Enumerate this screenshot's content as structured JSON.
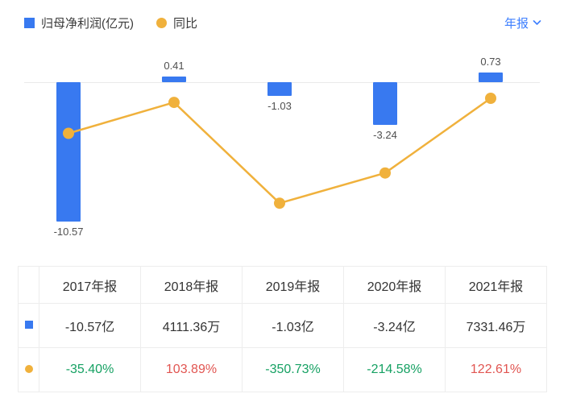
{
  "colors": {
    "bar_blue": "#3879f0",
    "line_orange": "#f0b13c",
    "accent_blue": "#3d7fff",
    "rise_red": "#e15551",
    "fall_green": "#16a163",
    "grid_gray": "#eaeaea"
  },
  "legend": {
    "bar_label": "归母净利润(亿元)",
    "line_label": "同比"
  },
  "period_selector": {
    "label": "年报"
  },
  "chart_data": {
    "type": "bar+line",
    "categories": [
      "2017年报",
      "2018年报",
      "2019年报",
      "2020年报",
      "2021年报"
    ],
    "series": [
      {
        "name": "归母净利润(亿元)",
        "type": "bar",
        "unit": "亿元",
        "values": [
          -10.57,
          0.41,
          -1.03,
          -3.24,
          0.73
        ],
        "labels": [
          "-10.57",
          "0.41",
          "-1.03",
          "-3.24",
          "0.73"
        ]
      },
      {
        "name": "同比",
        "type": "line",
        "unit": "%",
        "values": [
          -35.4,
          103.89,
          -350.73,
          -214.58,
          122.61
        ]
      }
    ],
    "grid": "zero-baseline-only",
    "legend_position": "top-left"
  },
  "table": {
    "headers": [
      "2017年报",
      "2018年报",
      "2019年报",
      "2020年报",
      "2021年报"
    ],
    "rows": [
      {
        "name": "归母净利润",
        "icon": "bar-series-icon",
        "values": [
          "-10.57亿",
          "4111.36万",
          "-1.03亿",
          "-3.24亿",
          "7331.46万"
        ]
      },
      {
        "name": "同比",
        "icon": "line-series-icon",
        "values": [
          "-35.40%",
          "103.89%",
          "-350.73%",
          "-214.58%",
          "122.61%"
        ],
        "value_colors": [
          "green",
          "red",
          "green",
          "green",
          "red"
        ]
      }
    ]
  }
}
